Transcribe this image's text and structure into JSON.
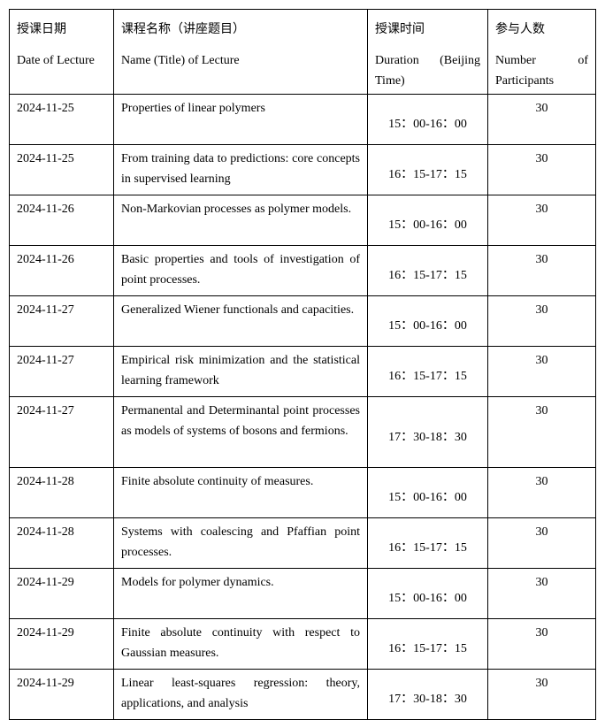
{
  "header": {
    "date": {
      "zh": "授课日期",
      "en": "Date of Lecture"
    },
    "title": {
      "zh": "课程名称（讲座题目）",
      "en": "Name (Title) of Lecture"
    },
    "duration": {
      "zh": "授课时间",
      "en": "Duration (Beijing Time)"
    },
    "participants": {
      "zh": "参与人数",
      "en": "Number of Participants"
    }
  },
  "rows": [
    {
      "date": "2024-11-25",
      "title": "Properties of linear polymers",
      "time": "15：00-16：00",
      "participants": "30"
    },
    {
      "date": "2024-11-25",
      "title": "From training data to predictions: core concepts in supervised learning",
      "time": "16：15-17：15",
      "participants": "30"
    },
    {
      "date": "2024-11-26",
      "title": "Non-Markovian processes as polymer models.",
      "time": "15：00-16：00",
      "participants": "30"
    },
    {
      "date": "2024-11-26",
      "title": "Basic properties and tools of investigation of point processes.",
      "time": "16：15-17：15",
      "participants": "30"
    },
    {
      "date": "2024-11-27",
      "title": "Generalized Wiener functionals and capacities.",
      "time": "15：00-16：00",
      "participants": "30"
    },
    {
      "date": "2024-11-27",
      "title": "Empirical risk minimization and the statistical learning framework",
      "time": "16：15-17：15",
      "participants": "30"
    },
    {
      "date": "2024-11-27",
      "title": "Permanental and Determinantal point processes as models of systems of bosons and fermions.",
      "time": "17：30-18：30",
      "participants": "30"
    },
    {
      "date": "2024-11-28",
      "title": "Finite absolute continuity of measures.",
      "time": "15：00-16：00",
      "participants": "30"
    },
    {
      "date": "2024-11-28",
      "title": "Systems with coalescing and Pfaffian point processes.",
      "time": "16：15-17：15",
      "participants": "30"
    },
    {
      "date": "2024-11-29",
      "title": "Models for polymer dynamics.",
      "time": "15：00-16：00",
      "participants": "30"
    },
    {
      "date": "2024-11-29",
      "title": "Finite absolute continuity with respect to Gaussian measures.",
      "time": "16：15-17：15",
      "participants": "30"
    },
    {
      "date": "2024-11-29",
      "title": "Linear least-squares regression: theory, applications, and analysis",
      "time": "17：30-18：30",
      "participants": "30"
    }
  ]
}
